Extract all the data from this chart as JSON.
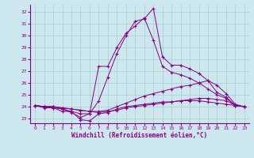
{
  "xlabel": "Windchill (Refroidissement éolien,°C)",
  "bg_color": "#cce8ee",
  "grid_color": "#aacccc",
  "line_color": "#880088",
  "xlim": [
    -0.5,
    23.5
  ],
  "ylim": [
    22.6,
    32.6
  ],
  "yticks": [
    23,
    24,
    25,
    26,
    27,
    28,
    29,
    30,
    31,
    32
  ],
  "xticks": [
    0,
    1,
    2,
    3,
    4,
    5,
    6,
    7,
    8,
    9,
    10,
    11,
    12,
    13,
    14,
    15,
    16,
    17,
    18,
    19,
    20,
    21,
    22,
    23
  ],
  "lines": [
    {
      "x": [
        0,
        1,
        2,
        3,
        4,
        5,
        6,
        7,
        8,
        9,
        10,
        11,
        12,
        13,
        14,
        15,
        16,
        17,
        18,
        19,
        20,
        21,
        22,
        23
      ],
      "y": [
        24.1,
        24.0,
        24.0,
        23.8,
        23.5,
        23.1,
        23.4,
        24.5,
        26.5,
        28.5,
        30.0,
        31.2,
        31.4,
        32.3,
        28.2,
        27.5,
        27.5,
        27.2,
        26.8,
        26.2,
        25.2,
        24.8,
        24.1,
        24.0
      ]
    },
    {
      "x": [
        0,
        1,
        2,
        3,
        4,
        5,
        6,
        7,
        8,
        9,
        10,
        11,
        12,
        13,
        14,
        15,
        16,
        17,
        18,
        19,
        20,
        21,
        22,
        23
      ],
      "y": [
        24.1,
        24.0,
        23.9,
        23.8,
        23.6,
        23.4,
        23.4,
        27.4,
        27.4,
        29.0,
        30.2,
        30.8,
        31.5,
        29.6,
        27.4,
        26.9,
        26.7,
        26.4,
        26.0,
        25.5,
        25.0,
        24.7,
        24.1,
        24.0
      ]
    },
    {
      "x": [
        0,
        1,
        2,
        3,
        4,
        5,
        6,
        7,
        8,
        9,
        10,
        11,
        12,
        13,
        14,
        15,
        16,
        17,
        18,
        19,
        20,
        21,
        22,
        23
      ],
      "y": [
        24.1,
        24.0,
        24.0,
        23.9,
        23.8,
        23.7,
        23.6,
        23.6,
        23.7,
        24.0,
        24.3,
        24.6,
        24.9,
        25.1,
        25.3,
        25.5,
        25.7,
        25.8,
        26.0,
        26.2,
        25.8,
        25.1,
        24.2,
        24.0
      ]
    },
    {
      "x": [
        0,
        1,
        2,
        3,
        4,
        5,
        6,
        7,
        8,
        9,
        10,
        11,
        12,
        13,
        14,
        15,
        16,
        17,
        18,
        19,
        20,
        21,
        22,
        23
      ],
      "y": [
        24.1,
        24.0,
        24.0,
        23.9,
        23.8,
        23.7,
        23.6,
        23.5,
        23.6,
        23.7,
        23.9,
        24.0,
        24.1,
        24.2,
        24.3,
        24.4,
        24.5,
        24.6,
        24.7,
        24.7,
        24.6,
        24.5,
        24.1,
        24.0
      ]
    },
    {
      "x": [
        0,
        1,
        2,
        3,
        4,
        5,
        6,
        7,
        8,
        9,
        10,
        11,
        12,
        13,
        14,
        15,
        16,
        17,
        18,
        19,
        20,
        21,
        22,
        23
      ],
      "y": [
        24.1,
        23.9,
        23.9,
        23.6,
        23.6,
        22.9,
        22.8,
        23.4,
        23.5,
        23.8,
        24.0,
        24.1,
        24.2,
        24.3,
        24.4,
        24.4,
        24.5,
        24.5,
        24.5,
        24.4,
        24.3,
        24.2,
        24.1,
        24.0
      ]
    }
  ]
}
